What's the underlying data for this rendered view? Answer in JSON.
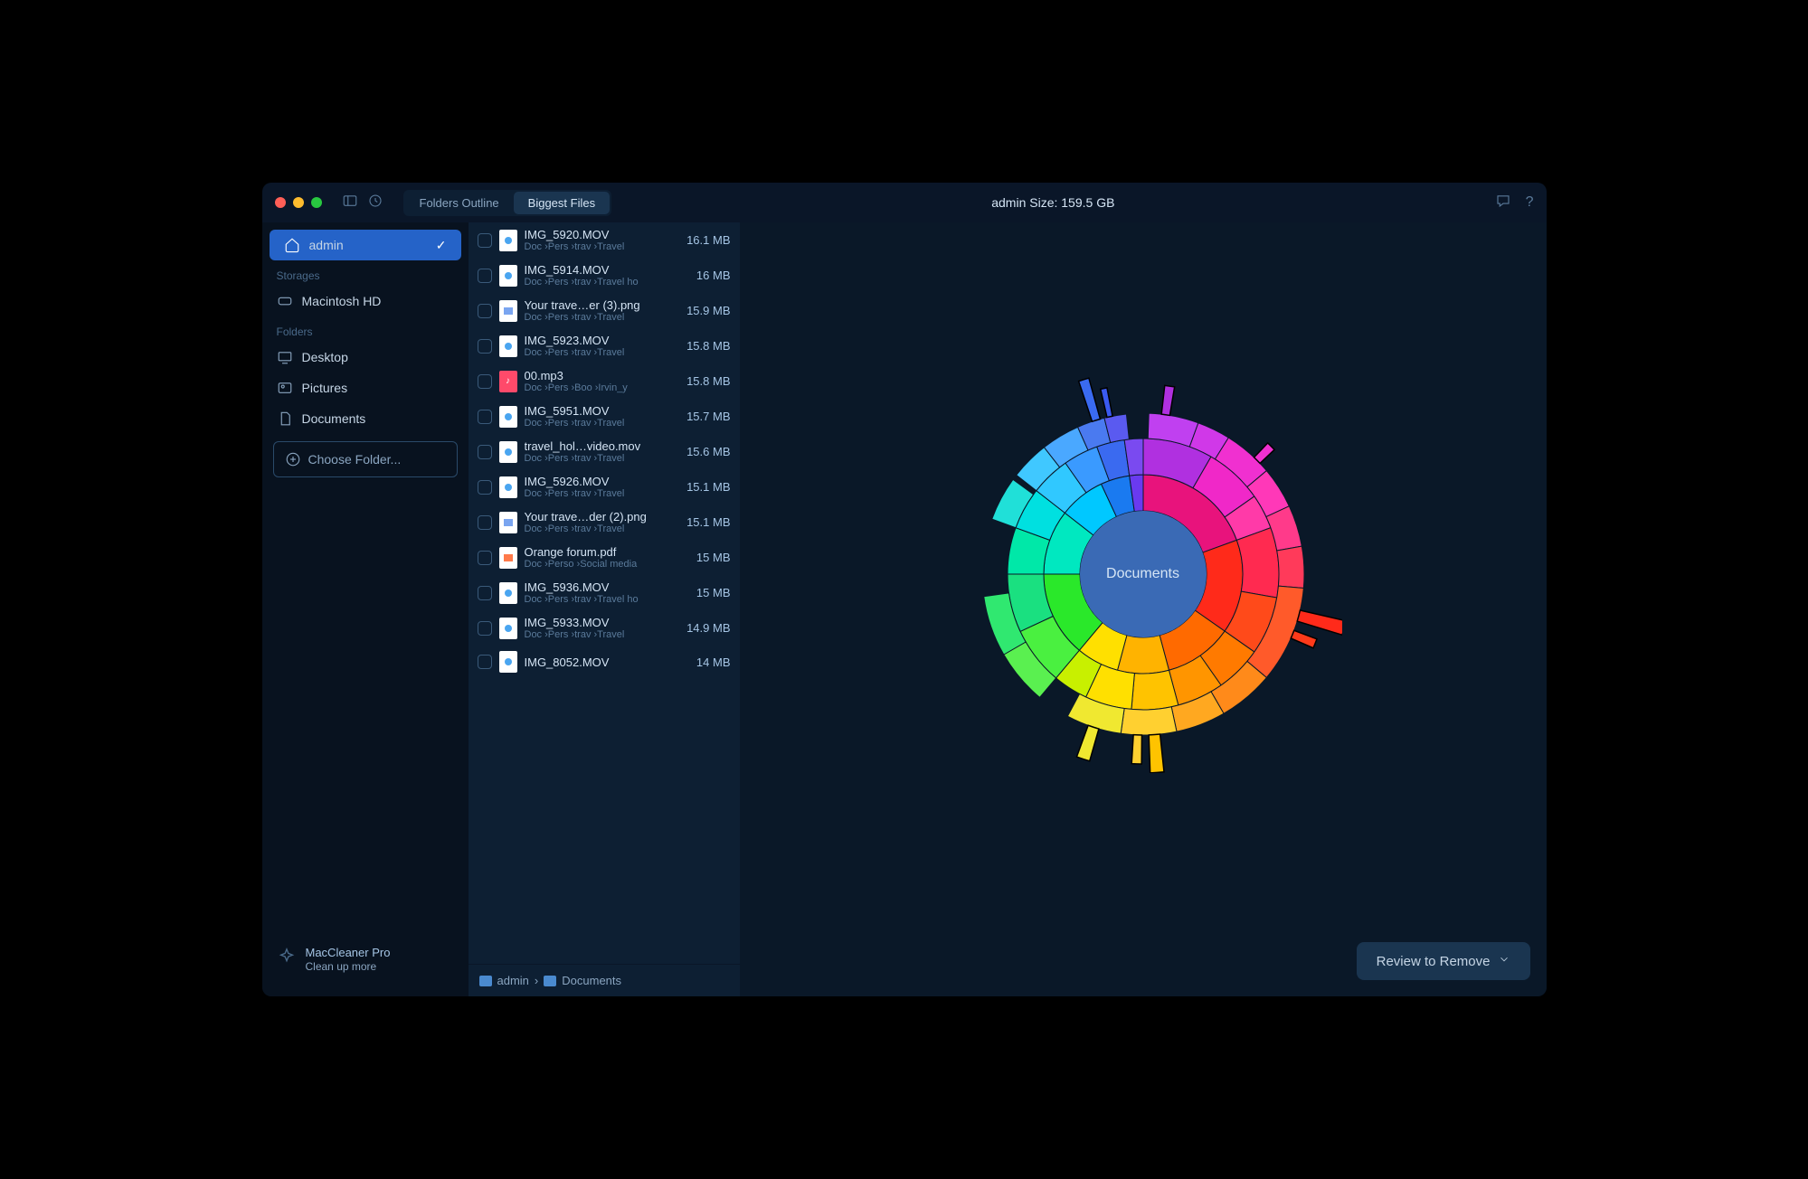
{
  "header": {
    "tabs": {
      "outline": "Folders Outline",
      "biggest": "Biggest Files",
      "active": "biggest"
    },
    "title": "admin   Size: 159.5 GB"
  },
  "sidebar": {
    "active": {
      "icon": "home",
      "label": "admin"
    },
    "sections": [
      {
        "title": "Storages",
        "items": [
          {
            "icon": "disk",
            "label": "Macintosh HD"
          }
        ]
      },
      {
        "title": "Folders",
        "items": [
          {
            "icon": "desktop",
            "label": "Desktop"
          },
          {
            "icon": "pictures",
            "label": "Pictures"
          },
          {
            "icon": "doc",
            "label": "Documents"
          }
        ]
      }
    ],
    "choose": "Choose Folder...",
    "footer": {
      "title": "MacCleaner Pro",
      "sub": "Clean up more"
    }
  },
  "files": [
    {
      "name": "IMG_5920.MOV",
      "path": "Doc ›Pers ›trav ›Travel",
      "size": "16.1 MB",
      "type": "mov"
    },
    {
      "name": "IMG_5914.MOV",
      "path": "Doc ›Pers ›trav ›Travel ho",
      "size": "16 MB",
      "type": "mov"
    },
    {
      "name": "Your trave…er (3).png",
      "path": "Doc ›Pers ›trav ›Travel",
      "size": "15.9 MB",
      "type": "png"
    },
    {
      "name": "IMG_5923.MOV",
      "path": "Doc ›Pers ›trav ›Travel",
      "size": "15.8 MB",
      "type": "mov"
    },
    {
      "name": "00.mp3",
      "path": "Doc ›Pers ›Boo ›Irvin_y",
      "size": "15.8 MB",
      "type": "mp3"
    },
    {
      "name": "IMG_5951.MOV",
      "path": "Doc ›Pers ›trav ›Travel",
      "size": "15.7 MB",
      "type": "mov"
    },
    {
      "name": "travel_hol…video.mov",
      "path": "Doc ›Pers ›trav ›Travel",
      "size": "15.6 MB",
      "type": "mov"
    },
    {
      "name": "IMG_5926.MOV",
      "path": "Doc ›Pers ›trav ›Travel",
      "size": "15.1 MB",
      "type": "mov"
    },
    {
      "name": "Your trave…der (2).png",
      "path": "Doc ›Pers ›trav ›Travel",
      "size": "15.1 MB",
      "type": "png"
    },
    {
      "name": "Orange forum.pdf",
      "path": "Doc ›Perso ›Social media",
      "size": "15 MB",
      "type": "pdf"
    },
    {
      "name": "IMG_5936.MOV",
      "path": "Doc ›Pers ›trav ›Travel ho",
      "size": "15 MB",
      "type": "mov"
    },
    {
      "name": "IMG_5933.MOV",
      "path": "Doc ›Pers ›trav ›Travel",
      "size": "14.9 MB",
      "type": "mov"
    },
    {
      "name": "IMG_8052.MOV",
      "path": "",
      "size": "14 MB",
      "type": "mov"
    }
  ],
  "breadcrumb": {
    "root": "admin",
    "current": "Documents"
  },
  "sunburst": {
    "center_label": "Documents",
    "center_color": "#3a6ab5",
    "background": "#0a1828",
    "rings": [
      {
        "inner": 70,
        "outer": 110,
        "slices": [
          {
            "start": -90,
            "end": -20,
            "color": "#e8137c"
          },
          {
            "start": -20,
            "end": 35,
            "color": "#ff2a1a"
          },
          {
            "start": 35,
            "end": 75,
            "color": "#ff6a00"
          },
          {
            "start": 75,
            "end": 105,
            "color": "#ffb300"
          },
          {
            "start": 105,
            "end": 130,
            "color": "#ffe000"
          },
          {
            "start": 130,
            "end": 180,
            "color": "#2ae82a"
          },
          {
            "start": 180,
            "end": 218,
            "color": "#00e8c0"
          },
          {
            "start": 218,
            "end": 245,
            "color": "#00c8ff"
          },
          {
            "start": 245,
            "end": 262,
            "color": "#1a7af0"
          },
          {
            "start": 262,
            "end": 270,
            "color": "#6a3af0"
          }
        ]
      },
      {
        "inner": 110,
        "outer": 150,
        "slices": [
          {
            "start": -90,
            "end": -60,
            "color": "#b030e0"
          },
          {
            "start": -60,
            "end": -35,
            "color": "#f028c8"
          },
          {
            "start": -35,
            "end": -20,
            "color": "#ff3aa8"
          },
          {
            "start": -20,
            "end": 10,
            "color": "#ff2a50"
          },
          {
            "start": 10,
            "end": 35,
            "color": "#ff4a1a"
          },
          {
            "start": 35,
            "end": 55,
            "color": "#ff7a00"
          },
          {
            "start": 55,
            "end": 75,
            "color": "#ff9500"
          },
          {
            "start": 75,
            "end": 95,
            "color": "#ffc300"
          },
          {
            "start": 95,
            "end": 115,
            "color": "#ffe000"
          },
          {
            "start": 115,
            "end": 130,
            "color": "#c8f000"
          },
          {
            "start": 130,
            "end": 155,
            "color": "#4af040"
          },
          {
            "start": 155,
            "end": 180,
            "color": "#1ae080"
          },
          {
            "start": 180,
            "end": 200,
            "color": "#00e8a8"
          },
          {
            "start": 200,
            "end": 218,
            "color": "#00e0e0"
          },
          {
            "start": 218,
            "end": 235,
            "color": "#30c8ff"
          },
          {
            "start": 235,
            "end": 250,
            "color": "#3a9aff"
          },
          {
            "start": 250,
            "end": 262,
            "color": "#3a6af0"
          },
          {
            "start": 262,
            "end": 270,
            "color": "#7a4af0"
          }
        ]
      },
      {
        "inner": 150,
        "outer": 178,
        "slices": [
          {
            "start": -88,
            "end": -70,
            "color": "#c040f0"
          },
          {
            "start": -70,
            "end": -58,
            "color": "#d038e8"
          },
          {
            "start": -58,
            "end": -40,
            "color": "#f030d0"
          },
          {
            "start": -40,
            "end": -25,
            "color": "#ff38b8"
          },
          {
            "start": -25,
            "end": -10,
            "color": "#ff3a8a"
          },
          {
            "start": -10,
            "end": 5,
            "color": "#ff3a5a"
          },
          {
            "start": 5,
            "end": 40,
            "color": "#ff5a2a"
          },
          {
            "start": 40,
            "end": 60,
            "color": "#ff8a1a"
          },
          {
            "start": 60,
            "end": 78,
            "color": "#ffa820"
          },
          {
            "start": 78,
            "end": 98,
            "color": "#ffd030"
          },
          {
            "start": 98,
            "end": 118,
            "color": "#f0e830"
          },
          {
            "start": 130,
            "end": 150,
            "color": "#5af050"
          },
          {
            "start": 150,
            "end": 172,
            "color": "#30e870"
          },
          {
            "start": 200,
            "end": 216,
            "color": "#20e0d8"
          },
          {
            "start": 218,
            "end": 232,
            "color": "#40c8ff"
          },
          {
            "start": 232,
            "end": 246,
            "color": "#4aa8ff"
          },
          {
            "start": 246,
            "end": 256,
            "color": "#4a7af0"
          },
          {
            "start": 256,
            "end": 264,
            "color": "#5a5af0"
          }
        ]
      }
    ],
    "spikes": [
      {
        "angle": -82,
        "width": 3,
        "r0": 178,
        "r1": 210,
        "color": "#b030e0"
      },
      {
        "angle": 15,
        "width": 4,
        "r0": 178,
        "r1": 230,
        "color": "#ff2a1a"
      },
      {
        "angle": 22,
        "width": 3,
        "r0": 178,
        "r1": 205,
        "color": "#ff3a1a"
      },
      {
        "angle": 86,
        "width": 4,
        "r0": 178,
        "r1": 220,
        "color": "#ffc300"
      },
      {
        "angle": 92,
        "width": 3,
        "r0": 178,
        "r1": 210,
        "color": "#ffd030"
      },
      {
        "angle": 108,
        "width": 4,
        "r0": 178,
        "r1": 215,
        "color": "#f0e830"
      },
      {
        "angle": 253,
        "width": 3,
        "r0": 178,
        "r1": 225,
        "color": "#3a6af0"
      },
      {
        "angle": 258,
        "width": 2,
        "r0": 178,
        "r1": 210,
        "color": "#3a5af0"
      },
      {
        "angle": -45,
        "width": 3,
        "r0": 178,
        "r1": 200,
        "color": "#f030d0"
      }
    ]
  },
  "review_button": "Review to Remove"
}
